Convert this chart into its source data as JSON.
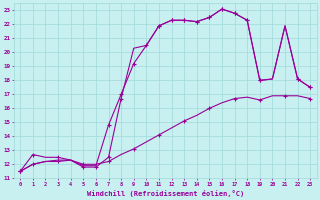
{
  "xlabel": "Windchill (Refroidissement éolien,°C)",
  "bg_color": "#c8f0f0",
  "grid_color": "#a0d8d8",
  "line_color": "#990099",
  "xlim": [
    -0.5,
    23.5
  ],
  "ylim": [
    11,
    23.5
  ],
  "xticks": [
    0,
    1,
    2,
    3,
    4,
    5,
    6,
    7,
    8,
    9,
    10,
    11,
    12,
    13,
    14,
    15,
    16,
    17,
    18,
    19,
    20,
    21,
    22,
    23
  ],
  "yticks": [
    11,
    12,
    13,
    14,
    15,
    16,
    17,
    18,
    19,
    20,
    21,
    22,
    23
  ],
  "upper_x": [
    0,
    1,
    2,
    3,
    4,
    5,
    6,
    7,
    8,
    9,
    10,
    11,
    12,
    13,
    14,
    15,
    16,
    17,
    18,
    19,
    20,
    21,
    22,
    23
  ],
  "upper_y": [
    11.5,
    12.7,
    12.5,
    12.5,
    12.3,
    11.8,
    11.8,
    12.5,
    16.7,
    20.3,
    20.5,
    21.9,
    22.3,
    22.3,
    22.2,
    22.5,
    23.1,
    22.8,
    22.3,
    18.0,
    18.1,
    21.9,
    18.1,
    17.5
  ],
  "upper_markers": [
    0,
    1,
    3,
    5,
    6,
    7,
    8,
    11,
    12,
    13,
    14,
    15,
    16,
    17,
    18,
    19,
    22,
    23
  ],
  "steep_x": [
    0,
    1,
    2,
    3,
    4,
    5,
    6,
    7,
    8,
    9,
    10,
    11,
    12,
    13,
    14,
    15,
    16,
    17,
    18,
    19,
    20,
    21,
    22,
    23
  ],
  "steep_y": [
    11.5,
    12.0,
    12.2,
    12.3,
    12.3,
    11.9,
    11.9,
    14.8,
    17.0,
    19.2,
    20.5,
    21.9,
    22.3,
    22.3,
    22.2,
    22.5,
    23.1,
    22.8,
    22.3,
    18.0,
    18.1,
    21.9,
    18.1,
    17.5
  ],
  "steep_markers": [
    0,
    7,
    8,
    9,
    10,
    11,
    12,
    13,
    14,
    15,
    16,
    17,
    18,
    19,
    22,
    23
  ],
  "bottom_x": [
    0,
    1,
    2,
    3,
    4,
    5,
    6,
    7,
    8,
    9,
    10,
    11,
    12,
    13,
    14,
    15,
    16,
    17,
    18,
    19,
    20,
    21,
    22,
    23
  ],
  "bottom_y": [
    11.5,
    12.0,
    12.2,
    12.2,
    12.3,
    12.0,
    12.0,
    12.2,
    12.7,
    13.1,
    13.6,
    14.1,
    14.6,
    15.1,
    15.5,
    16.0,
    16.4,
    16.7,
    16.8,
    16.6,
    16.9,
    16.9,
    16.9,
    16.7
  ],
  "bottom_markers": [
    0,
    1,
    3,
    5,
    7,
    9,
    11,
    13,
    15,
    17,
    19,
    21,
    23
  ]
}
